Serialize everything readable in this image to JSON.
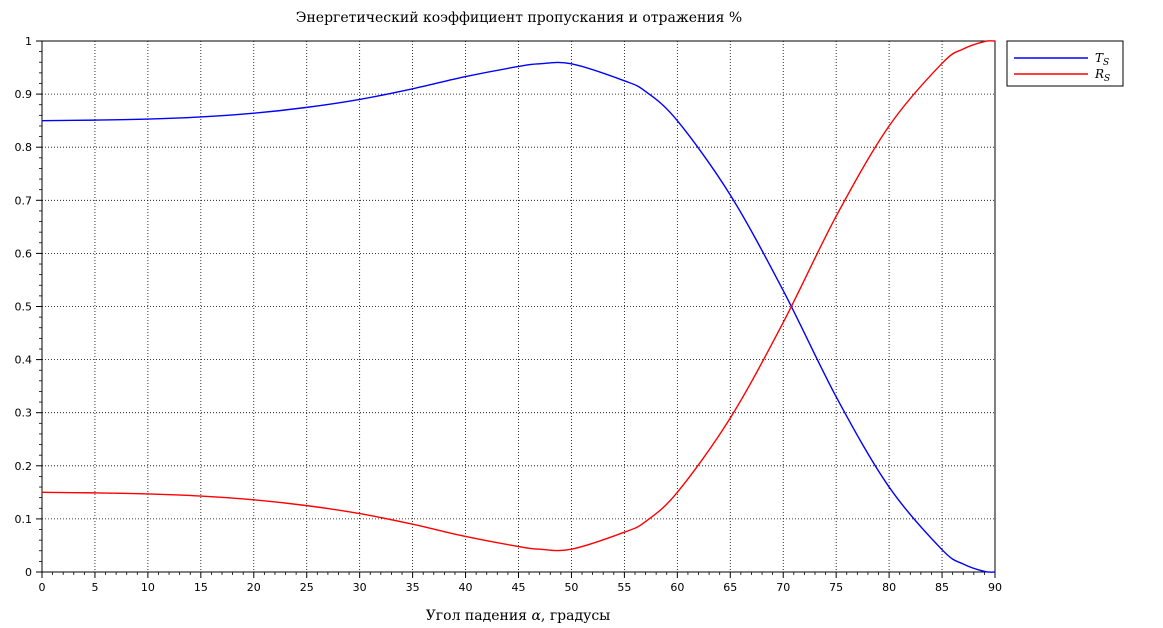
{
  "chart_data": {
    "type": "line",
    "title": "Энергетический коэффициент пропускания и отражения %",
    "xlabel_prefix": "Угол падения ",
    "xlabel_symbol": "α",
    "xlabel_suffix": ", градусы",
    "ylabel": "",
    "xlim": [
      0,
      90
    ],
    "ylim": [
      0,
      1
    ],
    "x_ticks": [
      "0",
      "5",
      "10",
      "15",
      "20",
      "25",
      "30",
      "35",
      "40",
      "45",
      "50",
      "55",
      "60",
      "65",
      "70",
      "75",
      "80",
      "85",
      "90"
    ],
    "y_ticks": [
      "0",
      "0.1",
      "0.2",
      "0.3",
      "0.4",
      "0.5",
      "0.6",
      "0.7",
      "0.8",
      "0.9",
      "1"
    ],
    "grid": true,
    "legend_position": "outside-top-right",
    "x": [
      0,
      5,
      10,
      15,
      20,
      25,
      30,
      35,
      40,
      45,
      47,
      50,
      55,
      57,
      60,
      65,
      70,
      75,
      80,
      85,
      87,
      89,
      90
    ],
    "series": [
      {
        "name": "T",
        "name_sub": "S",
        "color": "#0000ff",
        "values": [
          0.85,
          0.851,
          0.853,
          0.857,
          0.864,
          0.875,
          0.89,
          0.91,
          0.933,
          0.952,
          0.957,
          0.957,
          0.925,
          0.905,
          0.85,
          0.71,
          0.53,
          0.33,
          0.16,
          0.042,
          0.015,
          0.001,
          0.0
        ]
      },
      {
        "name": "R",
        "name_sub": "S",
        "color": "#ff0000",
        "values": [
          0.15,
          0.149,
          0.147,
          0.143,
          0.136,
          0.125,
          0.11,
          0.09,
          0.067,
          0.048,
          0.043,
          0.043,
          0.075,
          0.095,
          0.15,
          0.29,
          0.47,
          0.67,
          0.84,
          0.958,
          0.985,
          0.999,
          1.0
        ]
      }
    ]
  }
}
